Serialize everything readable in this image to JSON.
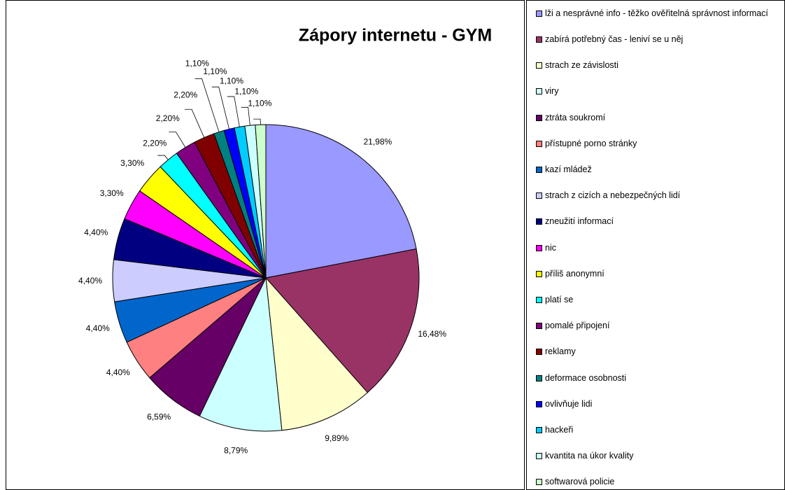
{
  "chart_data": {
    "type": "pie",
    "title": "Zápory internetu - GYM",
    "categories": [
      "lži a nesprávné info - těžko ověřitelná správnost informací",
      "zabírá potřebný čas - leniví se u něj",
      "strach ze závislosti",
      "viry",
      "ztráta soukromí",
      "přístupné porno stránky",
      "kazí mládež",
      "strach z cizích a nebezpečných lidí",
      "zneužití informací",
      "nic",
      "příliš anonymní",
      "platí se",
      "pomalé připojení",
      "reklamy",
      "deformace osobnosti",
      "ovlivňuje lidi",
      "hackeři",
      "kvantita na úkor kvality",
      "softwarová policie"
    ],
    "values": [
      21.98,
      16.48,
      9.89,
      8.79,
      6.59,
      4.4,
      4.4,
      4.4,
      4.4,
      3.3,
      3.3,
      2.2,
      2.2,
      2.2,
      1.1,
      1.1,
      1.1,
      1.1,
      1.1
    ],
    "value_labels": [
      "21,98%",
      "16,48%",
      "9,89%",
      "8,79%",
      "6,59%",
      "4,40%",
      "4,40%",
      "4,40%",
      "4,40%",
      "3,30%",
      "3,30%",
      "2,20%",
      "2,20%",
      "2,20%",
      "1,10%",
      "1,10%",
      "1,10%",
      "1,10%",
      "1,10%"
    ],
    "colors": [
      "#9999ff",
      "#993366",
      "#ffffcc",
      "#ccffff",
      "#660066",
      "#ff8080",
      "#0066cc",
      "#ccccff",
      "#000080",
      "#ff00ff",
      "#ffff00",
      "#00ffff",
      "#800080",
      "#800000",
      "#008080",
      "#0000ff",
      "#00ccff",
      "#ccffff",
      "#ccffcc"
    ],
    "legend": "right"
  }
}
